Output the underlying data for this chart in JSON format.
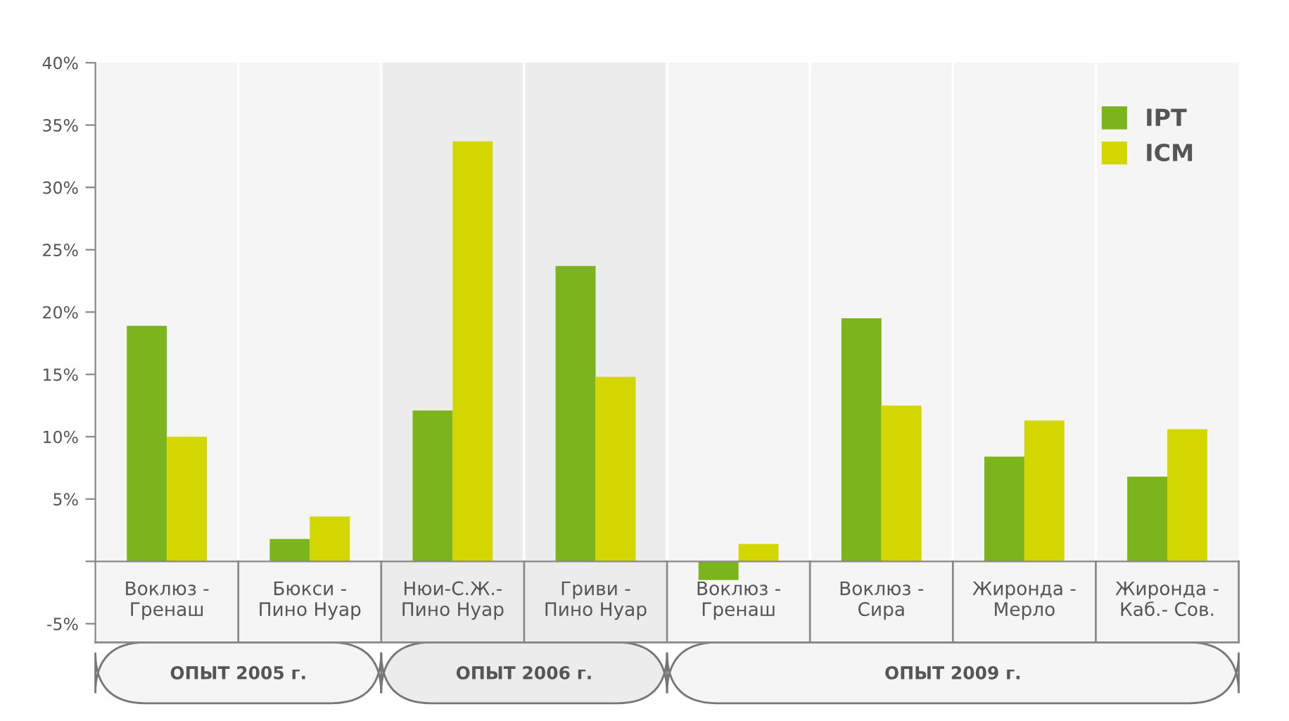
{
  "chart_data": {
    "type": "bar",
    "categories": [
      "Воклюз -\nГренаш",
      "Бюкси -\nПино Нуар",
      "Нюи-С.Ж.-\nПино Нуар",
      "Гриви -\nПино Нуар",
      "Воклюз -\nГренаш",
      "Воклюз -\nСира",
      "Жиронда -\nМерло",
      "Жиронда -\nКаб.- Сов."
    ],
    "series": [
      {
        "name": "IPT",
        "color": "#7cb41e",
        "values": [
          18.9,
          1.8,
          12.1,
          23.7,
          -1.5,
          19.5,
          8.4,
          6.8
        ]
      },
      {
        "name": "ICM",
        "color": "#d4d600",
        "values": [
          10.0,
          3.6,
          33.7,
          14.8,
          1.4,
          12.5,
          11.3,
          10.6
        ]
      }
    ],
    "ylim": [
      -6.5,
      40
    ],
    "yticks": [
      {
        "value": -5,
        "label": "-5%"
      },
      {
        "value": 0,
        "label": null
      },
      {
        "value": 5,
        "label": "5%"
      },
      {
        "value": 10,
        "label": "10%"
      },
      {
        "value": 15,
        "label": "15%"
      },
      {
        "value": 20,
        "label": "20%"
      },
      {
        "value": 25,
        "label": "25%"
      },
      {
        "value": 30,
        "label": "30%"
      },
      {
        "value": 35,
        "label": "35%"
      },
      {
        "value": 40,
        "label": "40%"
      }
    ],
    "bands": [
      {
        "axis": "x",
        "from": "Нюи-С.Ж.-\nПино Нуар",
        "to": "Гриви -\nПино Нуар",
        "label": "ОПЫТ 2006 г.",
        "color": "#ebeceb"
      }
    ],
    "annotations": [
      "ОПЫТ 2005 г.",
      "ОПЫТ 2009 г."
    ],
    "legend": "top right",
    "grid": false
  }
}
